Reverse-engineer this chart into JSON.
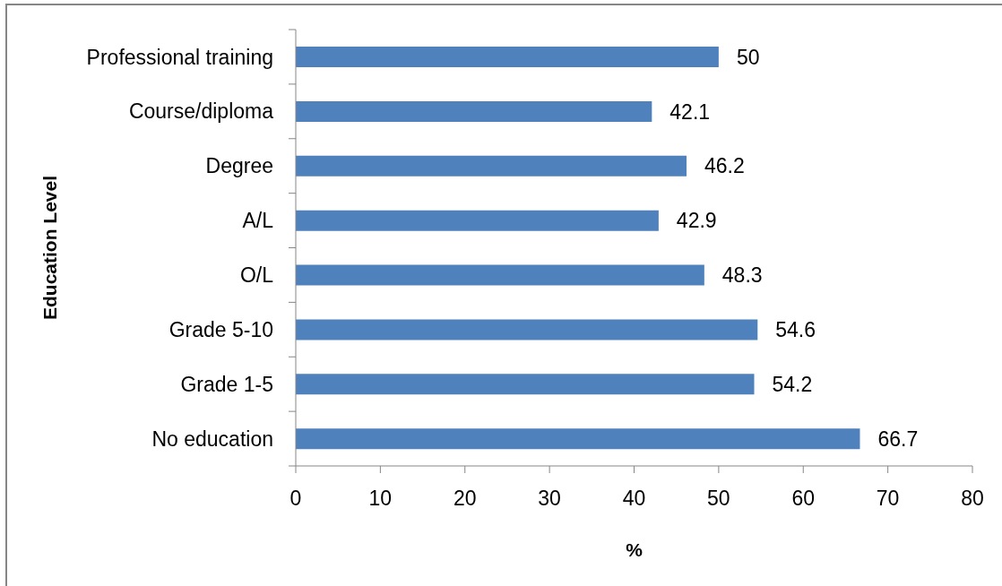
{
  "chart_data": {
    "type": "bar",
    "orientation": "horizontal",
    "xlabel": "%",
    "ylabel": "Education Level",
    "categories": [
      "Professional training",
      "Course/diploma",
      "Degree",
      "A/L",
      "O/L",
      "Grade 5-10",
      "Grade 1-5",
      "No education"
    ],
    "values": [
      50,
      42.1,
      46.2,
      42.9,
      48.3,
      54.6,
      54.2,
      66.7
    ],
    "color": "#4f81bd",
    "xlim": [
      0,
      80
    ],
    "xticks": [
      0,
      10,
      20,
      30,
      40,
      50,
      60,
      70,
      80
    ],
    "data_labels": true
  }
}
